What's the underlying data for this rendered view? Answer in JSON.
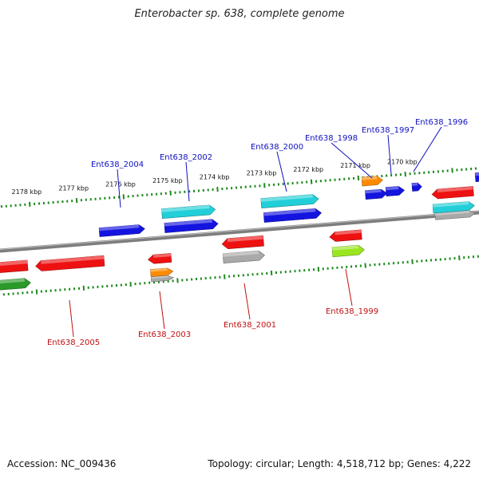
{
  "title": "Enterobacter sp. 638, complete genome",
  "footer": {
    "accession": "Accession: NC_009436",
    "topology": "Topology: circular; Length: 4,518,712 bp; Genes: 4,222"
  },
  "colors": {
    "backbone": "#7d7d7d",
    "ticks": "#1f8a1f",
    "label_top": "#1010c0",
    "label_bottom": "#c01010",
    "red": "#ee1111",
    "blue": "#1414e0",
    "cyan": "#22cfd8",
    "orange": "#ff8a00",
    "gray": "#a9a9a9",
    "lime": "#99e61f",
    "green": "#2a9a2a"
  },
  "tick_labels": [
    "2178 kbp",
    "2177 kbp",
    "2176 kbp",
    "2175 kbp",
    "2174 kbp",
    "2173 kbp",
    "2172 kbp",
    "2171 kbp",
    "2170 kbp"
  ],
  "gene_labels": {
    "top": [
      "Ent638_2004",
      "Ent638_2002",
      "Ent638_2000",
      "Ent638_1998",
      "Ent638_1997",
      "Ent638_1996"
    ],
    "bottom": [
      "Ent638_2005",
      "Ent638_2003",
      "Ent638_2001",
      "Ent638_1999"
    ]
  }
}
